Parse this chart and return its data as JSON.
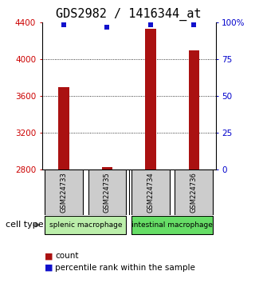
{
  "title": "GDS2982 / 1416344_at",
  "samples": [
    "GSM224733",
    "GSM224735",
    "GSM224734",
    "GSM224736"
  ],
  "counts": [
    3700,
    2830,
    4330,
    4100
  ],
  "percentiles": [
    98.5,
    97.0,
    98.5,
    98.5
  ],
  "ylim_left": [
    2800,
    4400
  ],
  "ylim_right": [
    0,
    100
  ],
  "left_ticks": [
    2800,
    3200,
    3600,
    4000,
    4400
  ],
  "right_ticks": [
    0,
    25,
    50,
    75,
    100
  ],
  "right_tick_labels": [
    "0",
    "25",
    "50",
    "75",
    "100%"
  ],
  "bar_color": "#aa1111",
  "dot_color": "#1111cc",
  "group1_label": "splenic macrophage",
  "group2_label": "intestinal macrophage",
  "group1_color": "#bbeeaa",
  "group2_color": "#66dd66",
  "sample_box_color": "#cccccc",
  "title_fontsize": 11,
  "axis_color_left": "#cc0000",
  "axis_color_right": "#0000cc",
  "bar_width": 0.25
}
